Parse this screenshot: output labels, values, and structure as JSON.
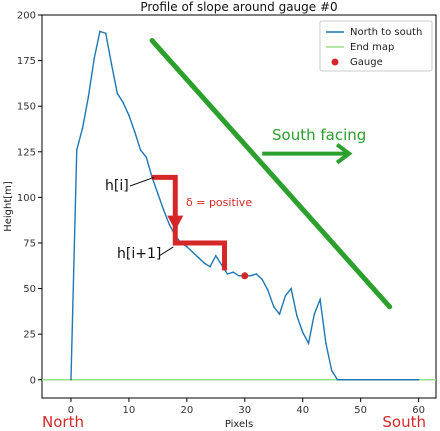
{
  "chart_data": {
    "type": "line",
    "title": "Profile of slope around gauge #0",
    "xlabel": "Pixels",
    "ylabel": "Height[m]",
    "xlim": [
      -5,
      63
    ],
    "ylim": [
      -10,
      200
    ],
    "xticks": [
      0,
      10,
      20,
      30,
      40,
      50,
      60
    ],
    "yticks": [
      0,
      25,
      50,
      75,
      100,
      125,
      150,
      175,
      200
    ],
    "grid": false,
    "legend_position": "top-right",
    "series": [
      {
        "name": "North to south",
        "color": "#1f77b4",
        "x": [
          0,
          1,
          2,
          3,
          4,
          5,
          6,
          7,
          8,
          9,
          10,
          11,
          12,
          13,
          14,
          15,
          16,
          17,
          18,
          19,
          20,
          21,
          22,
          23,
          24,
          25,
          26,
          27,
          28,
          29,
          30,
          31,
          32,
          33,
          34,
          35,
          36,
          37,
          38,
          39,
          40,
          41,
          42,
          43,
          44,
          45,
          46,
          60
        ],
        "y": [
          0,
          126,
          138,
          155,
          176,
          191,
          190,
          173,
          157,
          152,
          145,
          136,
          126,
          122,
          111,
          102,
          93,
          85,
          79,
          75,
          73,
          70,
          67,
          64,
          62,
          68,
          63,
          58,
          59,
          57,
          57,
          57,
          58,
          55,
          49,
          40,
          36,
          46,
          50,
          35,
          26,
          20,
          36,
          44,
          20,
          5,
          0,
          0
        ]
      },
      {
        "name": "End map",
        "color": "#98df8a",
        "x": [
          -5,
          63
        ],
        "y": [
          0,
          0
        ]
      }
    ],
    "points": [
      {
        "name": "Gauge",
        "color": "#d62728",
        "x": 30,
        "y": 57
      }
    ],
    "annotations": {
      "h_i": "h[i]",
      "h_i1": "h[i+1]",
      "delta": "δ = positive",
      "south_facing": "South facing",
      "north": "North",
      "south": "South"
    },
    "annotation_colors": {
      "step": "#d62728",
      "slope": "#2ca02c"
    },
    "step_path": [
      [
        14,
        111
      ],
      [
        18,
        111
      ],
      [
        18,
        75
      ],
      [
        26.5,
        75
      ],
      [
        26.5,
        60
      ]
    ],
    "slope_line": [
      [
        14,
        186
      ],
      [
        55,
        40
      ]
    ],
    "south_arrow": [
      [
        33,
        124
      ],
      [
        48,
        124
      ]
    ],
    "delta_arrow": [
      [
        18,
        108
      ],
      [
        18,
        90
      ]
    ]
  }
}
